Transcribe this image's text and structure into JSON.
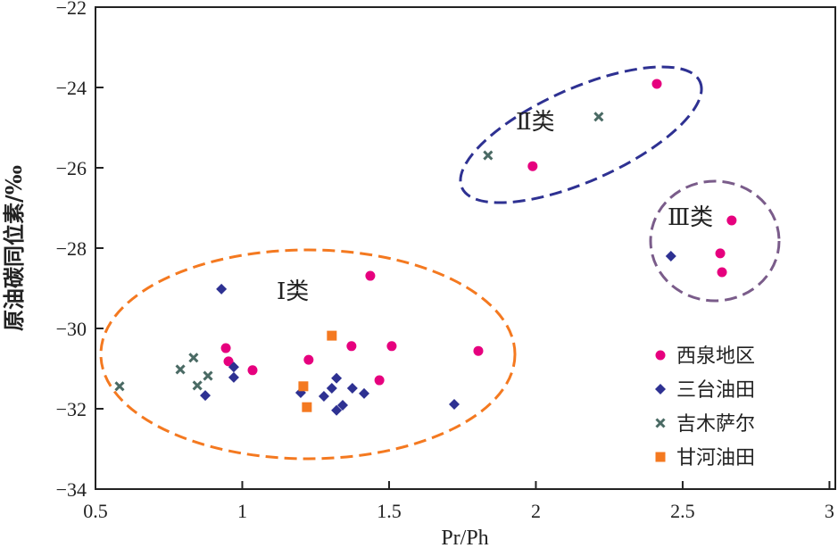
{
  "chart_data": {
    "type": "scatter",
    "xlabel": "Pr/Ph",
    "ylabel": "原油碳同位素/‰",
    "xlim": [
      0.5,
      3.02
    ],
    "ylim": [
      -34,
      -22
    ],
    "xticks": [
      0.5,
      1,
      1.5,
      2,
      2.5,
      3
    ],
    "xtick_labels": [
      "0.5",
      "1",
      "1.5",
      "2",
      "2.5",
      "3"
    ],
    "yticks": [
      -22,
      -24,
      -26,
      -28,
      -30,
      -32,
      -34
    ],
    "ytick_labels": [
      "−22",
      "−24",
      "−26",
      "−28",
      "−30",
      "−32",
      "−34"
    ],
    "grid": false,
    "legend_position": "bottom-right",
    "series": [
      {
        "name": "西泉地区",
        "marker": "circle",
        "color": "#e6007e",
        "x": [
          1.436,
          0.944,
          0.953,
          1.035,
          1.226,
          1.372,
          1.509,
          1.467,
          1.804,
          2.412,
          1.989,
          2.667,
          2.628,
          2.634
        ],
        "y": [
          -28.69,
          -30.49,
          -30.82,
          -31.04,
          -30.78,
          -30.44,
          -30.44,
          -31.29,
          -30.56,
          -23.91,
          -25.96,
          -27.31,
          -28.13,
          -28.6
        ]
      },
      {
        "name": "三台油田",
        "marker": "diamond",
        "color": "#2e3192",
        "x": [
          0.929,
          0.971,
          0.971,
          0.874,
          1.199,
          1.278,
          1.305,
          1.321,
          1.375,
          1.415,
          1.342,
          1.321,
          1.722,
          2.46
        ],
        "y": [
          -29.02,
          -30.96,
          -31.22,
          -31.67,
          -31.6,
          -31.69,
          -31.49,
          -31.24,
          -31.49,
          -31.62,
          -31.91,
          -32.04,
          -31.89,
          -28.2
        ]
      },
      {
        "name": "吉木萨尔",
        "marker": "x",
        "color": "#4a6a64",
        "x": [
          0.582,
          0.789,
          0.834,
          0.883,
          0.847,
          1.837,
          2.214
        ],
        "y": [
          -31.44,
          -31.02,
          -30.73,
          -31.18,
          -31.42,
          -25.69,
          -24.73
        ]
      },
      {
        "name": "甘河油田",
        "marker": "square",
        "color": "#f47920",
        "x": [
          1.305,
          1.208,
          1.22
        ],
        "y": [
          -30.18,
          -31.44,
          -31.96
        ]
      }
    ],
    "annotations": [
      {
        "label": "Ⅰ类",
        "color": "#f47920"
      },
      {
        "label": "Ⅱ类",
        "color": "#2e3192"
      },
      {
        "label": "Ⅲ类",
        "color": "#7a5c8a"
      }
    ]
  }
}
